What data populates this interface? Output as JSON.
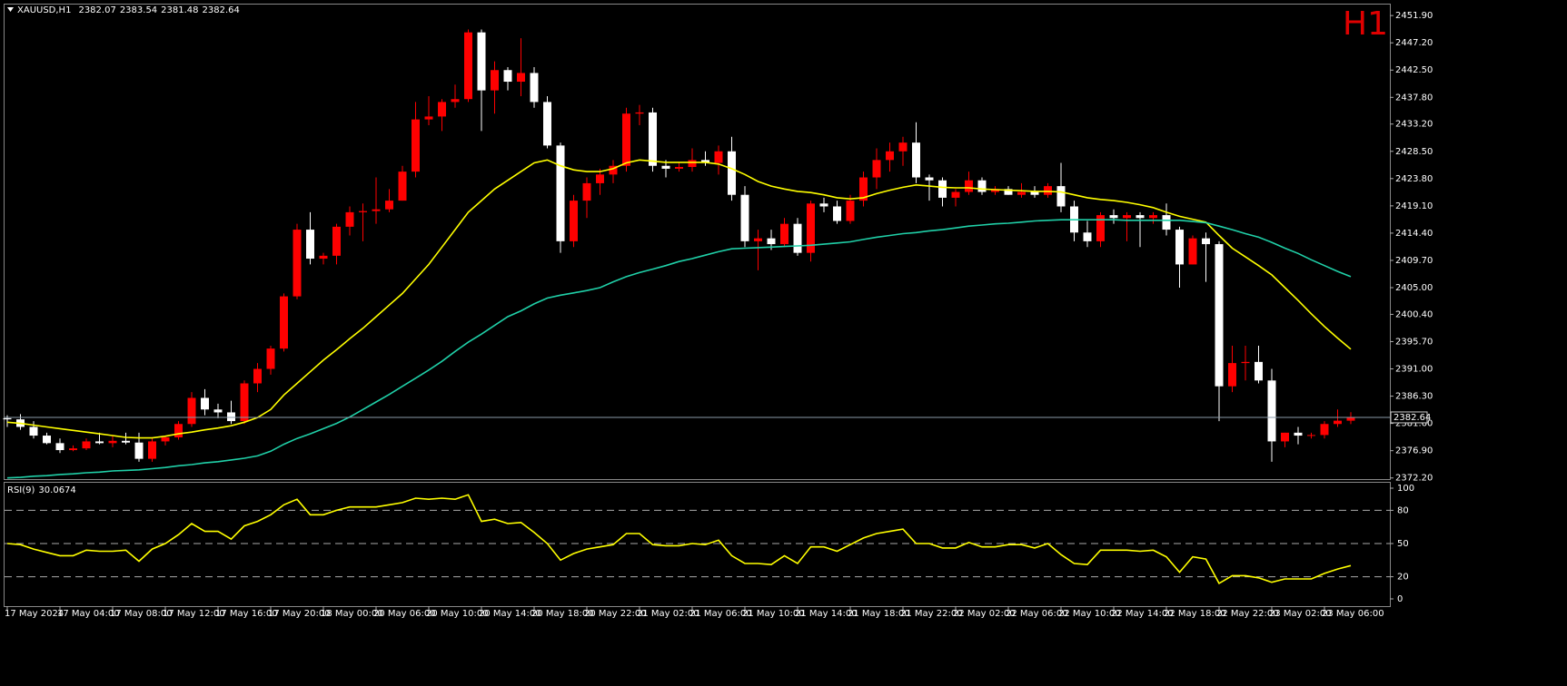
{
  "chart_data": {
    "type": "candlestick",
    "symbol": "XAUUSD,H1",
    "timeframe": "H1",
    "up_color": "#ff0000",
    "down_color": "#ffffff",
    "categories": [
      "17 May 2024",
      null,
      null,
      null,
      "17 May 04:00",
      null,
      null,
      null,
      "17 May 08:00",
      null,
      null,
      null,
      "17 May 12:00",
      null,
      null,
      null,
      "17 May 16:00",
      null,
      null,
      null,
      "17 May 20:00",
      null,
      null,
      null,
      "18 May 00:00",
      null,
      null,
      null,
      "20 May 06:00",
      null,
      null,
      null,
      "20 May 10:00",
      null,
      null,
      null,
      "20 May 14:00",
      null,
      null,
      null,
      "20 May 18:00",
      null,
      null,
      null,
      "20 May 22:00",
      null,
      null,
      null,
      "21 May 02:00",
      null,
      null,
      null,
      "21 May 06:00",
      null,
      null,
      null,
      "21 May 10:00",
      null,
      null,
      null,
      "21 May 14:00",
      null,
      null,
      null,
      "21 May 18:00",
      null,
      null,
      null,
      "21 May 22:00",
      null,
      null,
      null,
      "22 May 02:00",
      null,
      null,
      null,
      "22 May 06:00",
      null,
      null,
      null,
      "22 May 10:00",
      null,
      null,
      null,
      "22 May 14:00",
      null,
      null,
      null,
      "22 May 18:00",
      null,
      null,
      null,
      "22 May 22:00",
      null,
      null,
      null,
      "23 May 02:00",
      null,
      null,
      null,
      "23 May 06:00",
      null,
      null
    ],
    "open": [
      2382.5,
      2382.3,
      2381,
      2379.5,
      2378.2,
      2377,
      2377.3,
      2378.5,
      2378.2,
      2378.6,
      2378.3,
      2375.5,
      2378.5,
      2379.2,
      2381.5,
      2386,
      2384,
      2383.5,
      2382,
      2388.5,
      2391,
      2394.5,
      2403.5,
      2415,
      2410,
      2410.5,
      2415.5,
      2418,
      2418.2,
      2418.5,
      2420,
      2425,
      2434,
      2434.5,
      2437,
      2437.5,
      2449,
      2439,
      2442.5,
      2440.5,
      2442,
      2437,
      2429.5,
      2413,
      2420,
      2423,
      2424.5,
      2426,
      2435,
      2435.2,
      2426,
      2425.5,
      2425.8,
      2427,
      2426.5,
      2428.5,
      2421,
      2413,
      2413.5,
      2412.5,
      2416,
      2411,
      2419.5,
      2419,
      2416.5,
      2420,
      2424,
      2427,
      2428.5,
      2430,
      2424,
      2423.5,
      2420.5,
      2421.5,
      2423.5,
      2421.5,
      2422,
      2421,
      2421.5,
      2421,
      2422.5,
      2419,
      2414.5,
      2413,
      2417.5,
      2417,
      2417.5,
      2417,
      2417.5,
      2415,
      2409,
      2413.5,
      2412.5,
      2388,
      2392,
      2392.2,
      2389,
      2378.5,
      2380,
      2379.5,
      2379.6,
      2381.5,
      2382.07
    ],
    "high": [
      2383,
      2383.2,
      2382,
      2380,
      2379,
      2377.8,
      2379,
      2380,
      2379.5,
      2380,
      2380,
      2379,
      2379.5,
      2382,
      2387,
      2387.5,
      2385,
      2385.5,
      2389,
      2392,
      2395,
      2404,
      2416,
      2418,
      2411,
      2416,
      2419,
      2419.5,
      2424,
      2422,
      2426,
      2437,
      2438,
      2437.5,
      2440,
      2449.5,
      2449.5,
      2444,
      2443,
      2448,
      2443,
      2438,
      2430,
      2421,
      2424,
      2425.5,
      2427,
      2436,
      2436.5,
      2436,
      2427,
      2426.5,
      2429,
      2428.5,
      2429.5,
      2431,
      2422.5,
      2415,
      2415,
      2417,
      2417,
      2420,
      2420.5,
      2420,
      2421,
      2425,
      2429,
      2430,
      2431,
      2433.5,
      2424.5,
      2424,
      2422,
      2425,
      2424,
      2422.5,
      2422.5,
      2423,
      2422.5,
      2423,
      2426.5,
      2420,
      2416.5,
      2418,
      2418.5,
      2418,
      2418,
      2418,
      2419.5,
      2415.5,
      2414,
      2414.5,
      2413,
      2395,
      2395,
      2395,
      2391,
      2380,
      2381,
      2380,
      2382,
      2384,
      2383.54
    ],
    "low": [
      2381,
      2380.5,
      2379,
      2378,
      2376.5,
      2376.8,
      2377,
      2378,
      2377.5,
      2378,
      2375,
      2375,
      2377.8,
      2378.8,
      2381,
      2383,
      2382.5,
      2381.5,
      2381.5,
      2387,
      2390,
      2394,
      2403,
      2409,
      2409,
      2409,
      2414,
      2413,
      2416,
      2418,
      2420,
      2424,
      2433,
      2432,
      2436,
      2437,
      2432,
      2435,
      2439,
      2438,
      2436,
      2429,
      2411,
      2412,
      2417,
      2421,
      2423,
      2425,
      2433,
      2425,
      2424,
      2425,
      2425,
      2426,
      2424.5,
      2420,
      2412,
      2408,
      2411.5,
      2412,
      2410.5,
      2409.5,
      2418,
      2416,
      2416,
      2419,
      2422,
      2425,
      2426,
      2423,
      2420,
      2419,
      2419,
      2421,
      2421,
      2421,
      2421,
      2420.5,
      2420.5,
      2420.5,
      2418,
      2413,
      2412,
      2412,
      2416,
      2413,
      2412,
      2416,
      2414,
      2405,
      2409,
      2406,
      2382,
      2387,
      2389,
      2388.5,
      2375,
      2377.5,
      2378,
      2379,
      2379,
      2381,
      2381.48
    ],
    "close": [
      2382.3,
      2381,
      2379.5,
      2378.2,
      2377,
      2377.3,
      2378.5,
      2378.2,
      2378.6,
      2378.3,
      2375.5,
      2378.5,
      2379.2,
      2381.5,
      2386,
      2384,
      2383.5,
      2382,
      2388.5,
      2391,
      2394.5,
      2403.5,
      2415,
      2410,
      2410.5,
      2415.5,
      2418,
      2418.2,
      2418.5,
      2420,
      2425,
      2434,
      2434.5,
      2437,
      2437.5,
      2449,
      2439,
      2442.5,
      2440.5,
      2442,
      2437,
      2429.5,
      2413,
      2420,
      2423,
      2424.5,
      2426,
      2435,
      2435.2,
      2426,
      2425.5,
      2425.8,
      2427,
      2426.5,
      2428.5,
      2421,
      2413,
      2413.5,
      2412.5,
      2416,
      2411,
      2419.5,
      2419,
      2416.5,
      2420,
      2424,
      2427,
      2428.5,
      2430,
      2424,
      2423.5,
      2420.5,
      2421.5,
      2423.5,
      2421.5,
      2422,
      2421,
      2421.5,
      2421,
      2422.5,
      2419,
      2414.5,
      2413,
      2417.5,
      2417,
      2417.5,
      2417,
      2417.5,
      2415,
      2409,
      2413.5,
      2412.5,
      2388,
      2392,
      2392.2,
      2389,
      2378.5,
      2380,
      2379.5,
      2379.6,
      2381.5,
      2382.07,
      2382.64
    ],
    "overlays": [
      {
        "color": "#ffff00",
        "values": [
          2381.8,
          2381.6,
          2381.3,
          2381,
          2380.7,
          2380.4,
          2380.1,
          2379.8,
          2379.5,
          2379.2,
          2379.1,
          2379.1,
          2379.4,
          2379.8,
          2380.1,
          2380.5,
          2380.8,
          2381.2,
          2381.8,
          2382.6,
          2384,
          2386.5,
          2388.5,
          2390.5,
          2392.5,
          2394.3,
          2396.2,
          2398,
          2400,
          2402,
          2404,
          2406.5,
          2409,
          2412,
          2415,
          2418,
          2420,
          2422,
          2423.5,
          2425,
          2426.5,
          2427,
          2426,
          2425.3,
          2425,
          2425,
          2425.5,
          2426.5,
          2427,
          2426.8,
          2426.6,
          2426.6,
          2426.6,
          2426.6,
          2426.3,
          2425.5,
          2424.5,
          2423.3,
          2422.5,
          2422,
          2421.6,
          2421.4,
          2421,
          2420.5,
          2420.3,
          2420.5,
          2421.2,
          2421.8,
          2422.3,
          2422.7,
          2422.5,
          2422.3,
          2422.2,
          2422.2,
          2422,
          2421.9,
          2421.8,
          2421.7,
          2421.6,
          2421.6,
          2421.5,
          2421,
          2420.5,
          2420.2,
          2420,
          2419.7,
          2419.3,
          2418.8,
          2418,
          2417.3,
          2416.8,
          2416.3,
          2414,
          2411.8,
          2410.3,
          2408.8,
          2407.2,
          2405,
          2402.8,
          2400.5,
          2398.3,
          2396.3,
          2394.4
        ]
      },
      {
        "color": "#20d0a8",
        "values": [
          2372.2,
          2372.3,
          2372.5,
          2372.6,
          2372.8,
          2372.9,
          2373.1,
          2373.2,
          2373.4,
          2373.5,
          2373.6,
          2373.8,
          2374,
          2374.3,
          2374.5,
          2374.8,
          2375,
          2375.3,
          2375.6,
          2376,
          2376.8,
          2378,
          2379,
          2379.8,
          2380.7,
          2381.6,
          2382.7,
          2384,
          2385.3,
          2386.6,
          2388,
          2389.4,
          2390.8,
          2392.3,
          2394,
          2395.6,
          2397,
          2398.5,
          2400,
          2401,
          2402.2,
          2403.2,
          2403.7,
          2404.1,
          2404.5,
          2405,
          2406,
          2406.9,
          2407.6,
          2408.2,
          2408.8,
          2409.5,
          2410,
          2410.6,
          2411.2,
          2411.7,
          2411.8,
          2411.9,
          2412,
          2412.1,
          2412.2,
          2412.3,
          2412.5,
          2412.7,
          2412.9,
          2413.3,
          2413.7,
          2414,
          2414.3,
          2414.5,
          2414.8,
          2415,
          2415.3,
          2415.6,
          2415.8,
          2416,
          2416.1,
          2416.3,
          2416.5,
          2416.6,
          2416.7,
          2416.7,
          2416.7,
          2416.7,
          2416.7,
          2416.6,
          2416.6,
          2416.6,
          2416.6,
          2416.6,
          2416.4,
          2416.2,
          2415.6,
          2415,
          2414.3,
          2413.7,
          2412.8,
          2411.8,
          2410.9,
          2409.8,
          2408.8,
          2407.8,
          2406.9
        ]
      }
    ],
    "ylim": [
      2372.0,
      2453.8
    ],
    "yticks": [
      {
        "value": 2451.9,
        "label": "2451.90"
      },
      {
        "value": 2447.2,
        "label": "2447.20"
      },
      {
        "value": 2442.5,
        "label": "2442.50"
      },
      {
        "value": 2437.8,
        "label": "2437.80"
      },
      {
        "value": 2433.2,
        "label": "2433.20"
      },
      {
        "value": 2428.5,
        "label": "2428.50"
      },
      {
        "value": 2423.8,
        "label": "2423.80"
      },
      {
        "value": 2419.1,
        "label": "2419.10"
      },
      {
        "value": 2414.4,
        "label": "2414.40"
      },
      {
        "value": 2409.7,
        "label": "2409.70"
      },
      {
        "value": 2405,
        "label": "2405.00"
      },
      {
        "value": 2400.4,
        "label": "2400.40"
      },
      {
        "value": 2395.7,
        "label": "2395.70"
      },
      {
        "value": 2391,
        "label": "2391.00"
      },
      {
        "value": 2386.3,
        "label": "2386.30"
      },
      {
        "value": 2381.6,
        "label": "2381.60"
      },
      {
        "value": 2376.9,
        "label": "2376.90"
      },
      {
        "value": 2372.2,
        "label": "2372.20"
      }
    ],
    "indicator": {
      "title": "RSI(9)",
      "color": "#ffff00",
      "values": [
        50,
        49,
        45,
        42,
        39,
        39,
        44,
        43,
        43,
        44,
        34,
        45,
        50,
        58,
        68,
        61,
        61,
        54,
        66,
        70,
        76,
        85,
        90,
        76,
        76,
        80,
        83,
        83,
        83,
        85,
        87,
        91,
        90,
        91,
        90,
        94,
        70,
        72,
        68,
        69,
        60,
        50,
        35,
        41,
        45,
        47,
        49,
        59,
        59,
        49,
        48,
        48,
        50,
        49,
        53,
        39,
        32,
        32,
        31,
        39,
        32,
        47,
        47,
        43,
        49,
        55,
        59,
        61,
        63,
        50,
        50,
        46,
        46,
        51,
        47,
        47,
        49,
        49,
        46,
        50,
        40,
        32,
        31,
        44,
        44,
        44,
        43,
        44,
        38,
        24,
        38,
        36,
        14,
        21,
        21,
        19,
        15,
        18,
        18,
        18,
        23,
        27,
        30.0674
      ],
      "ylim": [
        0,
        100
      ],
      "yticks": [
        0,
        20,
        50,
        80,
        100
      ]
    }
  }
}
